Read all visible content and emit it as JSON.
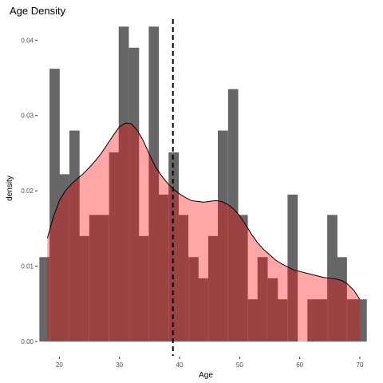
{
  "chart_data": {
    "type": "histogram",
    "title": "Age Density",
    "xlabel": "Age",
    "ylabel": "density",
    "xlim": [
      16.5,
      71.2
    ],
    "ylim": [
      0,
      0.043
    ],
    "x_ticks": [
      20,
      30,
      40,
      50,
      60,
      70
    ],
    "x_tick_labels": [
      "20",
      "30",
      "40",
      "50",
      "60",
      "70"
    ],
    "y_ticks": [
      0.0,
      0.01,
      0.02,
      0.03,
      0.04
    ],
    "y_tick_labels": [
      "0.00",
      "0.01",
      "0.02",
      "0.03",
      "0.04"
    ],
    "grid": false,
    "histogram": {
      "bin_width": 1.65,
      "bins": [
        {
          "x": 17.5,
          "density": 0.0112
        },
        {
          "x": 19.2,
          "density": 0.0362
        },
        {
          "x": 20.8,
          "density": 0.0222
        },
        {
          "x": 22.5,
          "density": 0.028
        },
        {
          "x": 24.1,
          "density": 0.014
        },
        {
          "x": 25.8,
          "density": 0.0168
        },
        {
          "x": 27.4,
          "density": 0.0168
        },
        {
          "x": 29.1,
          "density": 0.0251
        },
        {
          "x": 30.7,
          "density": 0.0418
        },
        {
          "x": 32.4,
          "density": 0.039
        },
        {
          "x": 34.0,
          "density": 0.014
        },
        {
          "x": 35.7,
          "density": 0.0418
        },
        {
          "x": 37.3,
          "density": 0.0195
        },
        {
          "x": 39.0,
          "density": 0.0251
        },
        {
          "x": 40.6,
          "density": 0.0168
        },
        {
          "x": 42.3,
          "density": 0.0112
        },
        {
          "x": 43.9,
          "density": 0.0084
        },
        {
          "x": 45.6,
          "density": 0.014
        },
        {
          "x": 47.2,
          "density": 0.028
        },
        {
          "x": 48.9,
          "density": 0.0335
        },
        {
          "x": 50.5,
          "density": 0.0168
        },
        {
          "x": 52.2,
          "density": 0.0056
        },
        {
          "x": 53.8,
          "density": 0.0112
        },
        {
          "x": 55.5,
          "density": 0.0084
        },
        {
          "x": 57.1,
          "density": 0.0056
        },
        {
          "x": 58.8,
          "density": 0.0195
        },
        {
          "x": 60.4,
          "density": 0.0
        },
        {
          "x": 62.1,
          "density": 0.0056
        },
        {
          "x": 63.7,
          "density": 0.0056
        },
        {
          "x": 65.4,
          "density": 0.0168
        },
        {
          "x": 67.0,
          "density": 0.0112
        },
        {
          "x": 68.7,
          "density": 0.0056
        },
        {
          "x": 70.3,
          "density": 0.0056
        }
      ],
      "color": "#666666"
    },
    "density": {
      "x": [
        18,
        19,
        20,
        21,
        22,
        23,
        24,
        25,
        26,
        27,
        28,
        29,
        30,
        31,
        32,
        33,
        34,
        35,
        36,
        37,
        38,
        39,
        40,
        41,
        42,
        43,
        44,
        45,
        46,
        47,
        48,
        49,
        50,
        51,
        52,
        53,
        54,
        55,
        56,
        57,
        58,
        59,
        60,
        61,
        62,
        63,
        64,
        65,
        66,
        67,
        68,
        69,
        70
      ],
      "y": [
        0.0137,
        0.0165,
        0.0187,
        0.02,
        0.0209,
        0.0216,
        0.0223,
        0.0231,
        0.024,
        0.025,
        0.0262,
        0.0274,
        0.0285,
        0.029,
        0.0289,
        0.028,
        0.0266,
        0.0248,
        0.0232,
        0.022,
        0.021,
        0.0202,
        0.0196,
        0.0191,
        0.0187,
        0.0186,
        0.0185,
        0.0186,
        0.0187,
        0.0186,
        0.0182,
        0.0176,
        0.0167,
        0.0155,
        0.0142,
        0.0131,
        0.0122,
        0.0115,
        0.0108,
        0.0103,
        0.0099,
        0.0095,
        0.0093,
        0.0091,
        0.0089,
        0.0087,
        0.0085,
        0.0084,
        0.0083,
        0.0081,
        0.0076,
        0.0068,
        0.0056
      ],
      "fill": "#ff0000",
      "fill_opacity": 0.35,
      "line_color": "#000000"
    },
    "reference_line": {
      "x": 38.9,
      "style": "dashed",
      "color": "#000000"
    }
  }
}
